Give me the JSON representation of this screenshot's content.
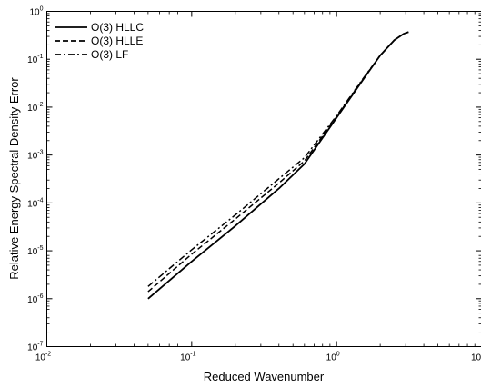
{
  "chart_data": {
    "type": "line",
    "xlabel": "Reduced Wavenumber",
    "ylabel": "Relative Energy Spectral Density Error",
    "x_scale": "log",
    "y_scale": "log",
    "xlim": [
      0.01,
      10
    ],
    "ylim": [
      1e-07,
      1
    ],
    "x_ticks": [
      {
        "base": "10",
        "exp": "-2",
        "value": 0.01
      },
      {
        "base": "10",
        "exp": "-1",
        "value": 0.1
      },
      {
        "base": "10",
        "exp": "0",
        "value": 1
      },
      {
        "base": "10",
        "exp": "1",
        "value": 10
      }
    ],
    "y_ticks": [
      {
        "base": "10",
        "exp": "-7",
        "value": 1e-07
      },
      {
        "base": "10",
        "exp": "-6",
        "value": 1e-06
      },
      {
        "base": "10",
        "exp": "-5",
        "value": 1e-05
      },
      {
        "base": "10",
        "exp": "-4",
        "value": 0.0001
      },
      {
        "base": "10",
        "exp": "-3",
        "value": 0.001
      },
      {
        "base": "10",
        "exp": "-2",
        "value": 0.01
      },
      {
        "base": "10",
        "exp": "-1",
        "value": 0.1
      },
      {
        "base": "10",
        "exp": "0",
        "value": 1
      }
    ],
    "grid": false,
    "legend_position": "top-left",
    "series": [
      {
        "name": "O(3) HLLC",
        "style": "solid",
        "color": "#000000",
        "x": [
          0.05,
          0.1,
          0.2,
          0.4,
          0.6,
          1.0,
          1.5,
          2.0,
          2.5,
          2.9,
          3.14
        ],
        "y": [
          1e-06,
          6e-06,
          3.3e-05,
          0.0002,
          0.00065,
          0.006,
          0.035,
          0.12,
          0.25,
          0.34,
          0.37
        ]
      },
      {
        "name": "O(3) HLLE",
        "style": "dashed",
        "color": "#000000",
        "x": [
          0.05,
          0.1,
          0.2,
          0.4,
          0.6,
          1.0,
          1.5,
          2.0,
          2.5,
          2.9,
          3.14
        ],
        "y": [
          1.4e-06,
          8.5e-06,
          4.6e-05,
          0.00026,
          0.00075,
          0.0063,
          0.036,
          0.12,
          0.25,
          0.34,
          0.37
        ]
      },
      {
        "name": "O(3) LF",
        "style": "dashdot",
        "color": "#000000",
        "x": [
          0.05,
          0.1,
          0.2,
          0.4,
          0.6,
          1.0,
          1.5,
          2.0,
          2.5,
          2.9,
          3.14
        ],
        "y": [
          1.8e-06,
          1.05e-05,
          5.6e-05,
          0.00032,
          0.00088,
          0.0066,
          0.037,
          0.12,
          0.25,
          0.34,
          0.37
        ]
      }
    ]
  }
}
